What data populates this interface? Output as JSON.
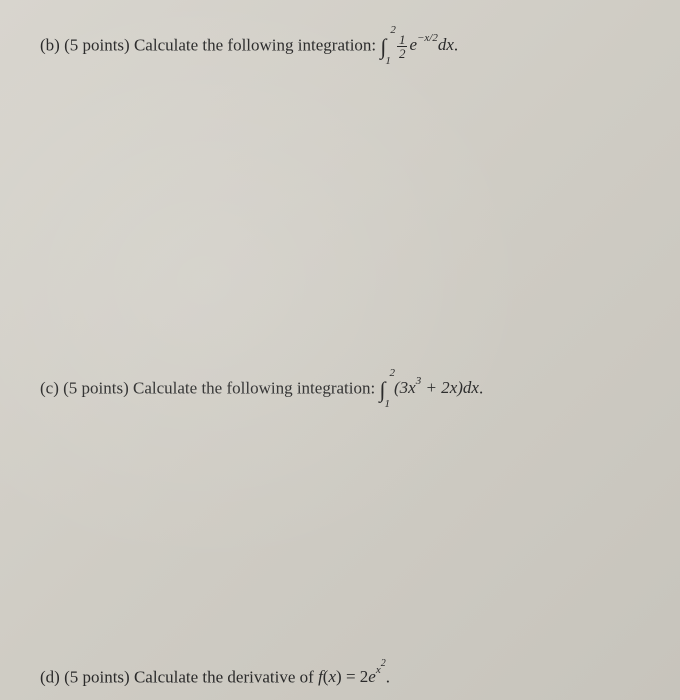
{
  "document": {
    "background_color": "#d4d1c9",
    "text_color": "#2a2a2a",
    "font_family": "Times New Roman",
    "base_fontsize": 17
  },
  "problems": {
    "b": {
      "label": "(b)",
      "points": "(5 points)",
      "text": "Calculate the following integration:",
      "integral": {
        "lower_bound": "1",
        "upper_bound": "2",
        "integrand_frac_num": "1",
        "integrand_frac_den": "2",
        "integrand_exp_var": "e",
        "integrand_exponent": "−x/2",
        "differential": "dx",
        "period": "."
      }
    },
    "c": {
      "label": "(c)",
      "points": "(5 points)",
      "text": "Calculate the following integration:",
      "integral": {
        "lower_bound": "1",
        "upper_bound": "2",
        "integrand_open": "(3",
        "integrand_var1": "x",
        "integrand_pow1": "3",
        "integrand_mid": " + 2",
        "integrand_var2": "x",
        "integrand_close": ")",
        "differential": "dx",
        "period": "."
      }
    },
    "d": {
      "label": "(d)",
      "points": "(5 points)",
      "text": "Calculate the derivative of",
      "function": {
        "fname": "f",
        "open": "(",
        "var": "x",
        "close": ")",
        "equals": " = 2",
        "exp_base": "e",
        "exp_var": "x",
        "exp_pow": "2",
        "period": "."
      }
    }
  }
}
